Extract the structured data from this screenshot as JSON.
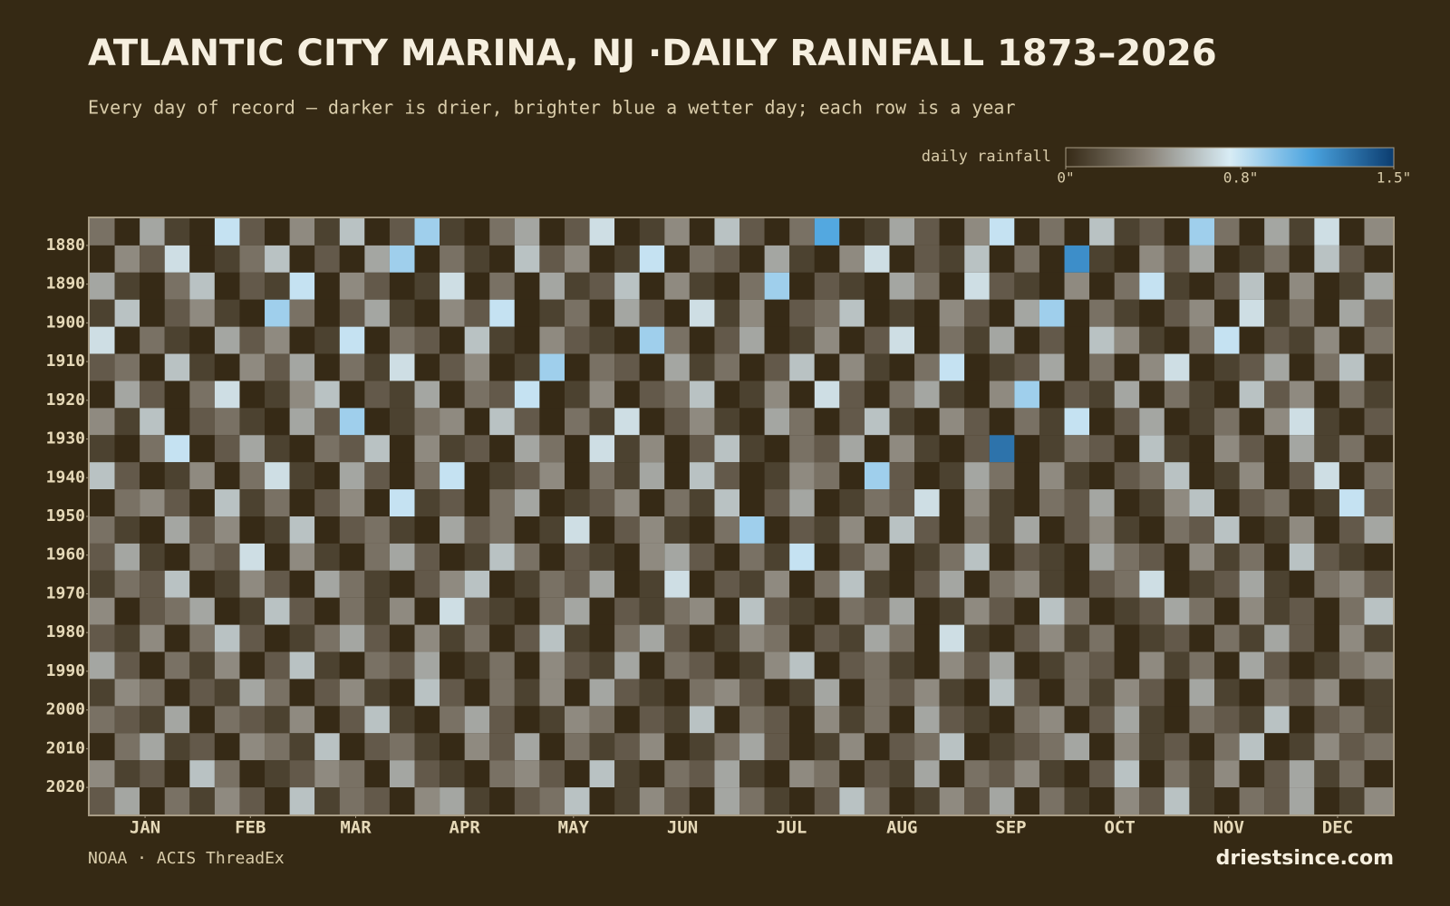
{
  "chart_data": {
    "type": "heatmap",
    "title": "ATLANTIC CITY MARINA, NJ ·DAILY RAINFALL 1873–2026",
    "subtitle": "Every day of record — darker is drier, brighter blue a wetter day; each row is a year",
    "colorbar_label": "daily rainfall",
    "source": "NOAA · ACIS ThreadEx",
    "credit": "driestsince.com",
    "clim": [
      0,
      1.5
    ],
    "cticks": [
      {
        "value": 0,
        "label": "0\""
      },
      {
        "value": 0.8,
        "label": "0.8\""
      },
      {
        "value": 1.5,
        "label": "1.5\""
      }
    ],
    "colors": [
      "#362a16",
      "#8a8378",
      "#d8ecf5",
      "#4aa3df",
      "#0b3c6f"
    ],
    "xlim": [
      0,
      365
    ],
    "xticks": [
      {
        "value": 15.5,
        "label": "JAN"
      },
      {
        "value": 45,
        "label": "FEB"
      },
      {
        "value": 74.5,
        "label": "MAR"
      },
      {
        "value": 105,
        "label": "APR"
      },
      {
        "value": 135.5,
        "label": "MAY"
      },
      {
        "value": 166,
        "label": "JUN"
      },
      {
        "value": 196.5,
        "label": "JUL"
      },
      {
        "value": 227.5,
        "label": "AUG"
      },
      {
        "value": 258,
        "label": "SEP"
      },
      {
        "value": 288.5,
        "label": "OCT"
      },
      {
        "value": 319,
        "label": "NOV"
      },
      {
        "value": 349.5,
        "label": "DEC"
      }
    ],
    "ylim": [
      1873,
      2027
    ],
    "yticks": [
      1880,
      1890,
      1900,
      1910,
      1920,
      1930,
      1940,
      1950,
      1960,
      1970,
      1980,
      1990,
      2000,
      2010,
      2020
    ],
    "x": [
      0,
      7,
      14,
      21,
      28,
      35,
      42,
      49,
      56,
      63,
      70,
      77,
      84,
      91,
      98,
      105,
      112,
      119,
      126,
      133,
      140,
      147,
      154,
      161,
      168,
      175,
      182,
      189,
      196,
      203,
      210,
      217,
      224,
      231,
      238,
      245,
      252,
      259,
      266,
      273,
      280,
      287,
      294,
      301,
      308,
      315,
      322,
      329,
      336,
      343,
      350,
      357
    ],
    "y": [
      1873,
      1880,
      1887,
      1894,
      1901,
      1908,
      1915,
      1922,
      1929,
      1936,
      1943,
      1950,
      1957,
      1964,
      1971,
      1978,
      1985,
      1992,
      1999,
      2006,
      2013,
      2020
    ],
    "values": [
      [
        0.3,
        0,
        0.5,
        0.1,
        0,
        0.8,
        0.2,
        0,
        0.4,
        0.1,
        0.6,
        0,
        0.2,
        0.9,
        0.1,
        0,
        0.3,
        0.5,
        0,
        0.2,
        0.7,
        0,
        0.1,
        0.4,
        0,
        0.6,
        0.2,
        0,
        0.3,
        1.1,
        0,
        0.1,
        0.5,
        0.2,
        0,
        0.4,
        0.8,
        0,
        0.3,
        0,
        0.6,
        0.1,
        0.2,
        0,
        0.9,
        0.3,
        0,
        0.5,
        0.1,
        0.7,
        0,
        0.4
      ],
      [
        0,
        0.4,
        0.2,
        0.7,
        0,
        0.1,
        0.3,
        0.6,
        0,
        0.2,
        0,
        0.5,
        0.9,
        0,
        0.3,
        0.1,
        0,
        0.6,
        0.2,
        0.4,
        0,
        0.1,
        0.8,
        0,
        0.3,
        0.2,
        0,
        0.5,
        0.1,
        0,
        0.4,
        0.7,
        0,
        0.2,
        0.1,
        0.6,
        0,
        0.3,
        0,
        1.2,
        0.1,
        0,
        0.4,
        0.2,
        0.5,
        0,
        0.1,
        0.3,
        0,
        0.6,
        0.2,
        0
      ],
      [
        0.5,
        0.1,
        0,
        0.3,
        0.6,
        0,
        0.2,
        0.1,
        0.8,
        0,
        0.4,
        0.2,
        0,
        0.1,
        0.7,
        0,
        0.3,
        0,
        0.5,
        0.1,
        0.2,
        0.6,
        0,
        0.4,
        0.1,
        0,
        0.3,
        0.9,
        0,
        0.2,
        0.1,
        0,
        0.5,
        0.3,
        0,
        0.7,
        0.2,
        0.1,
        0,
        0.4,
        0,
        0.3,
        0.8,
        0.1,
        0,
        0.2,
        0.6,
        0,
        0.4,
        0,
        0.1,
        0.5
      ],
      [
        0.1,
        0.6,
        0,
        0.2,
        0.4,
        0.1,
        0,
        0.9,
        0.3,
        0,
        0.2,
        0.5,
        0.1,
        0,
        0.4,
        0.2,
        0.8,
        0,
        0.1,
        0.3,
        0,
        0.5,
        0.2,
        0,
        0.7,
        0.1,
        0.4,
        0,
        0.2,
        0.3,
        0.6,
        0,
        0.1,
        0,
        0.4,
        0.2,
        0,
        0.5,
        0.9,
        0,
        0.3,
        0.1,
        0,
        0.2,
        0.4,
        0,
        0.7,
        0.1,
        0.3,
        0,
        0.5,
        0.2
      ],
      [
        0.7,
        0,
        0.3,
        0.1,
        0,
        0.5,
        0.2,
        0.4,
        0,
        0.1,
        0.8,
        0,
        0.3,
        0.2,
        0,
        0.6,
        0.1,
        0,
        0.4,
        0.2,
        0.1,
        0,
        0.9,
        0.3,
        0,
        0.2,
        0.5,
        0,
        0.1,
        0.4,
        0,
        0.2,
        0.7,
        0,
        0.3,
        0.1,
        0.5,
        0,
        0.2,
        0,
        0.6,
        0.4,
        0.1,
        0,
        0.3,
        0.8,
        0,
        0.2,
        0.1,
        0.4,
        0,
        0.3
      ],
      [
        0.2,
        0.3,
        0,
        0.6,
        0.1,
        0,
        0.4,
        0.2,
        0.5,
        0,
        0.3,
        0.1,
        0.7,
        0,
        0.2,
        0.4,
        0,
        0.1,
        0.9,
        0,
        0.3,
        0.2,
        0,
        0.5,
        0.1,
        0.3,
        0,
        0.2,
        0.6,
        0,
        0.4,
        0.1,
        0,
        0.3,
        0.8,
        0,
        0.1,
        0.2,
        0.5,
        0,
        0.3,
        0,
        0.4,
        0.7,
        0,
        0.1,
        0.2,
        0.5,
        0,
        0.3,
        0.6,
        0
      ],
      [
        0,
        0.5,
        0.2,
        0,
        0.3,
        0.7,
        0,
        0.1,
        0.4,
        0.6,
        0,
        0.2,
        0.1,
        0.5,
        0,
        0.3,
        0.2,
        0.8,
        0,
        0.1,
        0.4,
        0,
        0.2,
        0.3,
        0.6,
        0,
        0.1,
        0.4,
        0,
        0.7,
        0.2,
        0,
        0.3,
        0.5,
        0.1,
        0,
        0.4,
        0.9,
        0,
        0.2,
        0.1,
        0.5,
        0,
        0.3,
        0.1,
        0,
        0.6,
        0.2,
        0.4,
        0,
        0.3,
        0.1
      ],
      [
        0.4,
        0.1,
        0.6,
        0,
        0.2,
        0.3,
        0.1,
        0,
        0.5,
        0.2,
        0.9,
        0,
        0.1,
        0.3,
        0.4,
        0,
        0.6,
        0.2,
        0,
        0.3,
        0.1,
        0.7,
        0,
        0.2,
        0.4,
        0.1,
        0,
        0.5,
        0.3,
        0,
        0.2,
        0.6,
        0.1,
        0,
        0.4,
        0.2,
        0,
        0.3,
        0.1,
        0.8,
        0,
        0.2,
        0.5,
        0,
        0.1,
        0.3,
        0,
        0.4,
        0.7,
        0.1,
        0,
        0.2
      ],
      [
        0.1,
        0,
        0.3,
        0.8,
        0,
        0.2,
        0.5,
        0.1,
        0,
        0.3,
        0.2,
        0.6,
        0,
        0.4,
        0.1,
        0.2,
        0,
        0.5,
        0.3,
        0,
        0.7,
        0.1,
        0.4,
        0,
        0.2,
        0.6,
        0.1,
        0,
        0.3,
        0.2,
        0.5,
        0,
        0.4,
        0.1,
        0,
        0.2,
        1.3,
        0,
        0.1,
        0.3,
        0.2,
        0,
        0.6,
        0.1,
        0,
        0.4,
        0.2,
        0,
        0.5,
        0.1,
        0.3,
        0
      ],
      [
        0.6,
        0.2,
        0,
        0.1,
        0.4,
        0,
        0.3,
        0.7,
        0.1,
        0,
        0.5,
        0.2,
        0,
        0.3,
        0.8,
        0,
        0.1,
        0.2,
        0.4,
        0,
        0.3,
        0.1,
        0.5,
        0,
        0.6,
        0.2,
        0,
        0.1,
        0.4,
        0.3,
        0,
        0.9,
        0.2,
        0,
        0.1,
        0.5,
        0.3,
        0,
        0.4,
        0.1,
        0,
        0.2,
        0.3,
        0.6,
        0,
        0.1,
        0.4,
        0,
        0.2,
        0.7,
        0,
        0.3
      ],
      [
        0,
        0.3,
        0.4,
        0.2,
        0,
        0.6,
        0.1,
        0.3,
        0,
        0.2,
        0.4,
        0,
        0.8,
        0.1,
        0.2,
        0,
        0.3,
        0.5,
        0,
        0.1,
        0.2,
        0.4,
        0,
        0.3,
        0.1,
        0.6,
        0,
        0.2,
        0.5,
        0,
        0.1,
        0.3,
        0.2,
        0.7,
        0,
        0.4,
        0.1,
        0,
        0.3,
        0.2,
        0.5,
        0,
        0.1,
        0.4,
        0.6,
        0,
        0.2,
        0.3,
        0,
        0.1,
        0.8,
        0.2
      ],
      [
        0.3,
        0.1,
        0,
        0.5,
        0.2,
        0.4,
        0,
        0.1,
        0.6,
        0,
        0.2,
        0.3,
        0.1,
        0,
        0.5,
        0.2,
        0.3,
        0,
        0.1,
        0.7,
        0,
        0.2,
        0.4,
        0.1,
        0,
        0.3,
        0.9,
        0,
        0.2,
        0.1,
        0.4,
        0,
        0.6,
        0.2,
        0,
        0.3,
        0.1,
        0.5,
        0,
        0.2,
        0.4,
        0.1,
        0,
        0.3,
        0.2,
        0.6,
        0,
        0.1,
        0.4,
        0,
        0.2,
        0.5
      ],
      [
        0.2,
        0.5,
        0.1,
        0,
        0.3,
        0.2,
        0.7,
        0,
        0.4,
        0.1,
        0,
        0.3,
        0.5,
        0.2,
        0,
        0.1,
        0.6,
        0.3,
        0,
        0.2,
        0.1,
        0,
        0.4,
        0.5,
        0.2,
        0,
        0.3,
        0.1,
        0.8,
        0,
        0.2,
        0.4,
        0,
        0.1,
        0.3,
        0.6,
        0,
        0.2,
        0.1,
        0,
        0.5,
        0.3,
        0.2,
        0,
        0.4,
        0.1,
        0.3,
        0,
        0.6,
        0.2,
        0.1,
        0
      ],
      [
        0.1,
        0.3,
        0.2,
        0.6,
        0,
        0.1,
        0.4,
        0.2,
        0,
        0.5,
        0.3,
        0.1,
        0,
        0.2,
        0.4,
        0.6,
        0,
        0.1,
        0.3,
        0.2,
        0.5,
        0,
        0.1,
        0.7,
        0,
        0.2,
        0.1,
        0.4,
        0,
        0.3,
        0.6,
        0.1,
        0,
        0.2,
        0.5,
        0,
        0.3,
        0.4,
        0.1,
        0,
        0.2,
        0.3,
        0.7,
        0,
        0.1,
        0.2,
        0.5,
        0.1,
        0,
        0.3,
        0.4,
        0.2
      ],
      [
        0.4,
        0,
        0.2,
        0.3,
        0.5,
        0,
        0.1,
        0.6,
        0.2,
        0,
        0.3,
        0.1,
        0.4,
        0,
        0.7,
        0.2,
        0.1,
        0,
        0.3,
        0.5,
        0,
        0.2,
        0.1,
        0.3,
        0.4,
        0,
        0.6,
        0.2,
        0.1,
        0,
        0.3,
        0.2,
        0.5,
        0,
        0.1,
        0.4,
        0.2,
        0,
        0.6,
        0.3,
        0,
        0.1,
        0.2,
        0.5,
        0.3,
        0,
        0.4,
        0.1,
        0.2,
        0,
        0.3,
        0.6
      ],
      [
        0.2,
        0.1,
        0.4,
        0,
        0.3,
        0.6,
        0.2,
        0,
        0.1,
        0.3,
        0.5,
        0.2,
        0,
        0.4,
        0.1,
        0.3,
        0,
        0.2,
        0.6,
        0.1,
        0,
        0.3,
        0.5,
        0.2,
        0,
        0.1,
        0.4,
        0.3,
        0,
        0.2,
        0.1,
        0.5,
        0.3,
        0,
        0.7,
        0.1,
        0,
        0.2,
        0.4,
        0.1,
        0.3,
        0,
        0.1,
        0.2,
        0,
        0.3,
        0.1,
        0.5,
        0.2,
        0,
        0.4,
        0.1
      ],
      [
        0.5,
        0.2,
        0,
        0.3,
        0.1,
        0.4,
        0,
        0.2,
        0.6,
        0.1,
        0,
        0.3,
        0.2,
        0.5,
        0,
        0.1,
        0.3,
        0,
        0.4,
        0.2,
        0.1,
        0.5,
        0,
        0.3,
        0.2,
        0,
        0.1,
        0.4,
        0.6,
        0,
        0.2,
        0.3,
        0.1,
        0,
        0.4,
        0.2,
        0.5,
        0,
        0.1,
        0.3,
        0.2,
        0,
        0.4,
        0.1,
        0.3,
        0,
        0.5,
        0.2,
        0,
        0.1,
        0.3,
        0.4
      ],
      [
        0.1,
        0.4,
        0.3,
        0,
        0.2,
        0.1,
        0.5,
        0.3,
        0,
        0.2,
        0.4,
        0.1,
        0,
        0.6,
        0.2,
        0,
        0.3,
        0.1,
        0.4,
        0,
        0.5,
        0.2,
        0.1,
        0,
        0.3,
        0.4,
        0.2,
        0,
        0.1,
        0.5,
        0,
        0.3,
        0.2,
        0.4,
        0.1,
        0,
        0.6,
        0.2,
        0,
        0.3,
        0.1,
        0.4,
        0.2,
        0,
        0.5,
        0.1,
        0,
        0.3,
        0.2,
        0.4,
        0,
        0.1
      ],
      [
        0.3,
        0.2,
        0.1,
        0.5,
        0,
        0.3,
        0.2,
        0.1,
        0.4,
        0,
        0.2,
        0.6,
        0.1,
        0,
        0.3,
        0.5,
        0.2,
        0,
        0.1,
        0.4,
        0.3,
        0,
        0.2,
        0.1,
        0.6,
        0,
        0.3,
        0.2,
        0,
        0.4,
        0.1,
        0.3,
        0,
        0.5,
        0.2,
        0.1,
        0,
        0.3,
        0.4,
        0,
        0.2,
        0.5,
        0.1,
        0,
        0.3,
        0.2,
        0.1,
        0.6,
        0,
        0.2,
        0.3,
        0.1
      ],
      [
        0,
        0.3,
        0.5,
        0.1,
        0.2,
        0,
        0.4,
        0.3,
        0.1,
        0.6,
        0,
        0.2,
        0.3,
        0.1,
        0,
        0.4,
        0.2,
        0.5,
        0,
        0.3,
        0.1,
        0.2,
        0.4,
        0,
        0.1,
        0.3,
        0.5,
        0.2,
        0,
        0.1,
        0.4,
        0,
        0.2,
        0.3,
        0.6,
        0,
        0.1,
        0.2,
        0.3,
        0.5,
        0,
        0.4,
        0.1,
        0.2,
        0,
        0.3,
        0.6,
        0,
        0.1,
        0.4,
        0.2,
        0.3
      ],
      [
        0.4,
        0.1,
        0.2,
        0,
        0.6,
        0.3,
        0,
        0.1,
        0.2,
        0.4,
        0.3,
        0,
        0.5,
        0.2,
        0.1,
        0,
        0.3,
        0.4,
        0.2,
        0,
        0.6,
        0.1,
        0,
        0.3,
        0.2,
        0.5,
        0.1,
        0,
        0.4,
        0.3,
        0,
        0.2,
        0.1,
        0.5,
        0,
        0.3,
        0.2,
        0.4,
        0.1,
        0,
        0.2,
        0.6,
        0,
        0.3,
        0.1,
        0.4,
        0,
        0.2,
        0.5,
        0.1,
        0.3,
        0
      ],
      [
        0.2,
        0.5,
        0,
        0.3,
        0.1,
        0.4,
        0.2,
        0,
        0.6,
        0.1,
        0.3,
        0.2,
        0,
        0.4,
        0.5,
        0.1,
        0,
        0.2,
        0.3,
        0.6,
        0,
        0.1,
        0.4,
        0.2,
        0,
        0.5,
        0.3,
        0.1,
        0,
        0.2,
        0.6,
        0.3,
        0,
        0.1,
        0.4,
        0.2,
        0.5,
        0,
        0.3,
        0.1,
        0,
        0.4,
        0.2,
        0.6,
        0.1,
        0,
        0.3,
        0.2,
        0.5,
        0,
        0.1,
        0.4
      ]
    ]
  }
}
